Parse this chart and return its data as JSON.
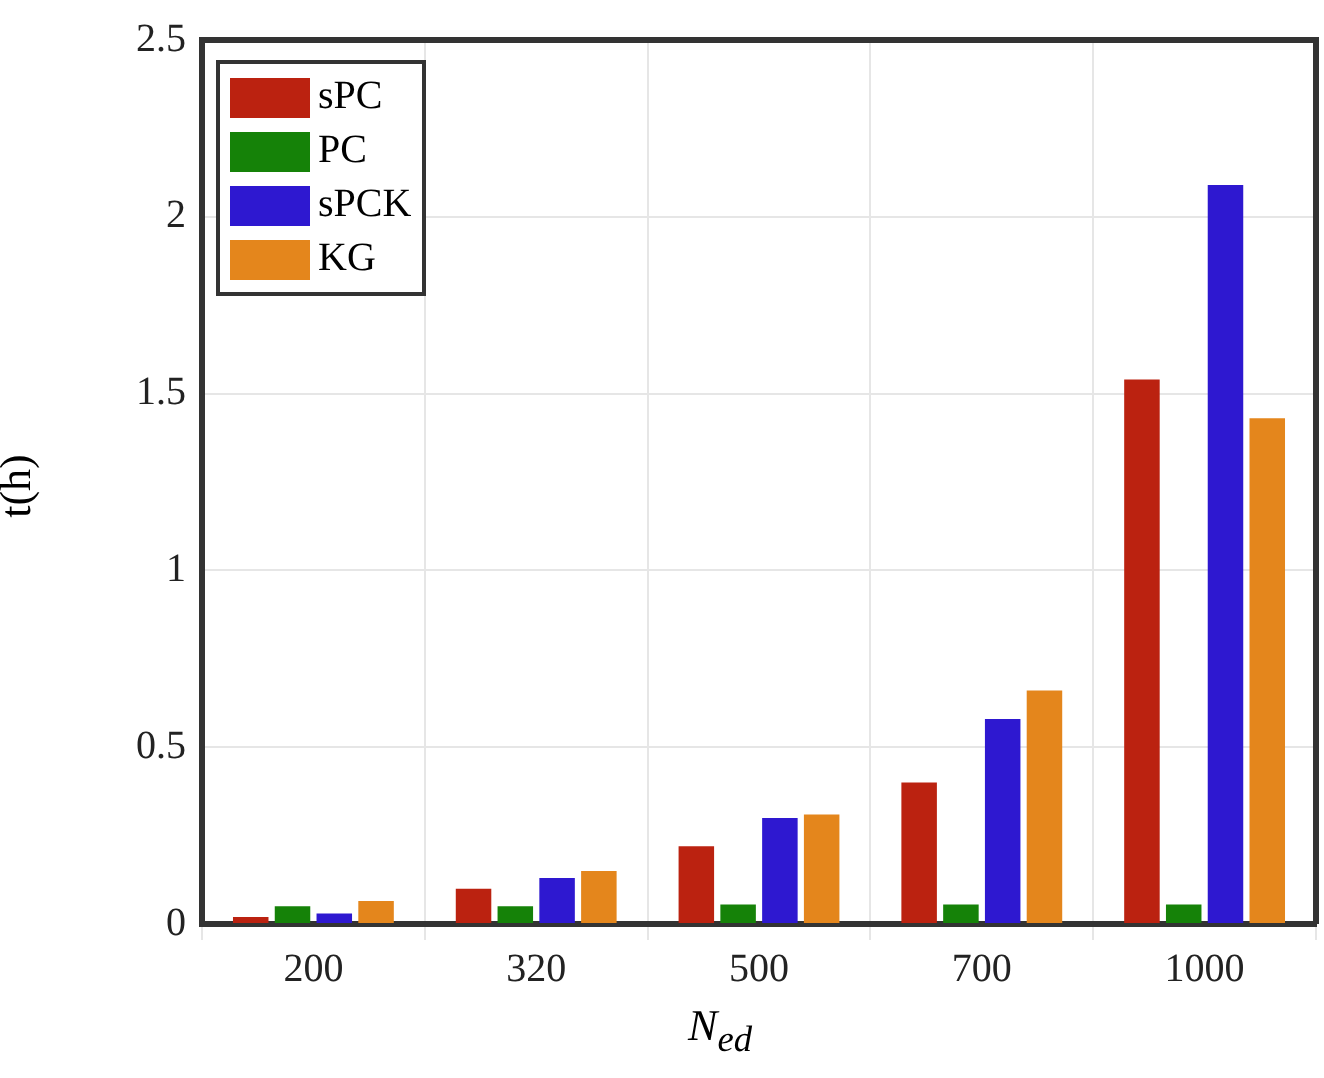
{
  "chart_data": {
    "type": "bar",
    "xlabel": "N$_{ed}$",
    "ylabel": "t(h)",
    "categories": [
      "200",
      "320",
      "500",
      "700",
      "1000"
    ],
    "series": [
      {
        "name": "sPC",
        "color": "#bb2210",
        "values": [
          0.02,
          0.1,
          0.22,
          0.4,
          1.54
        ]
      },
      {
        "name": "PC",
        "color": "#158208",
        "values": [
          0.05,
          0.05,
          0.055,
          0.055,
          0.055
        ]
      },
      {
        "name": "sPCK",
        "color": "#2e18d0",
        "values": [
          0.03,
          0.13,
          0.3,
          0.58,
          2.09
        ]
      },
      {
        "name": "KG",
        "color": "#e4861c",
        "values": [
          0.065,
          0.15,
          0.31,
          0.66,
          1.43
        ]
      }
    ],
    "ylim": [
      0,
      2.5
    ],
    "yticks": [
      0,
      0.5,
      1,
      1.5,
      2,
      2.5
    ],
    "grid": true,
    "legend": "top left"
  }
}
